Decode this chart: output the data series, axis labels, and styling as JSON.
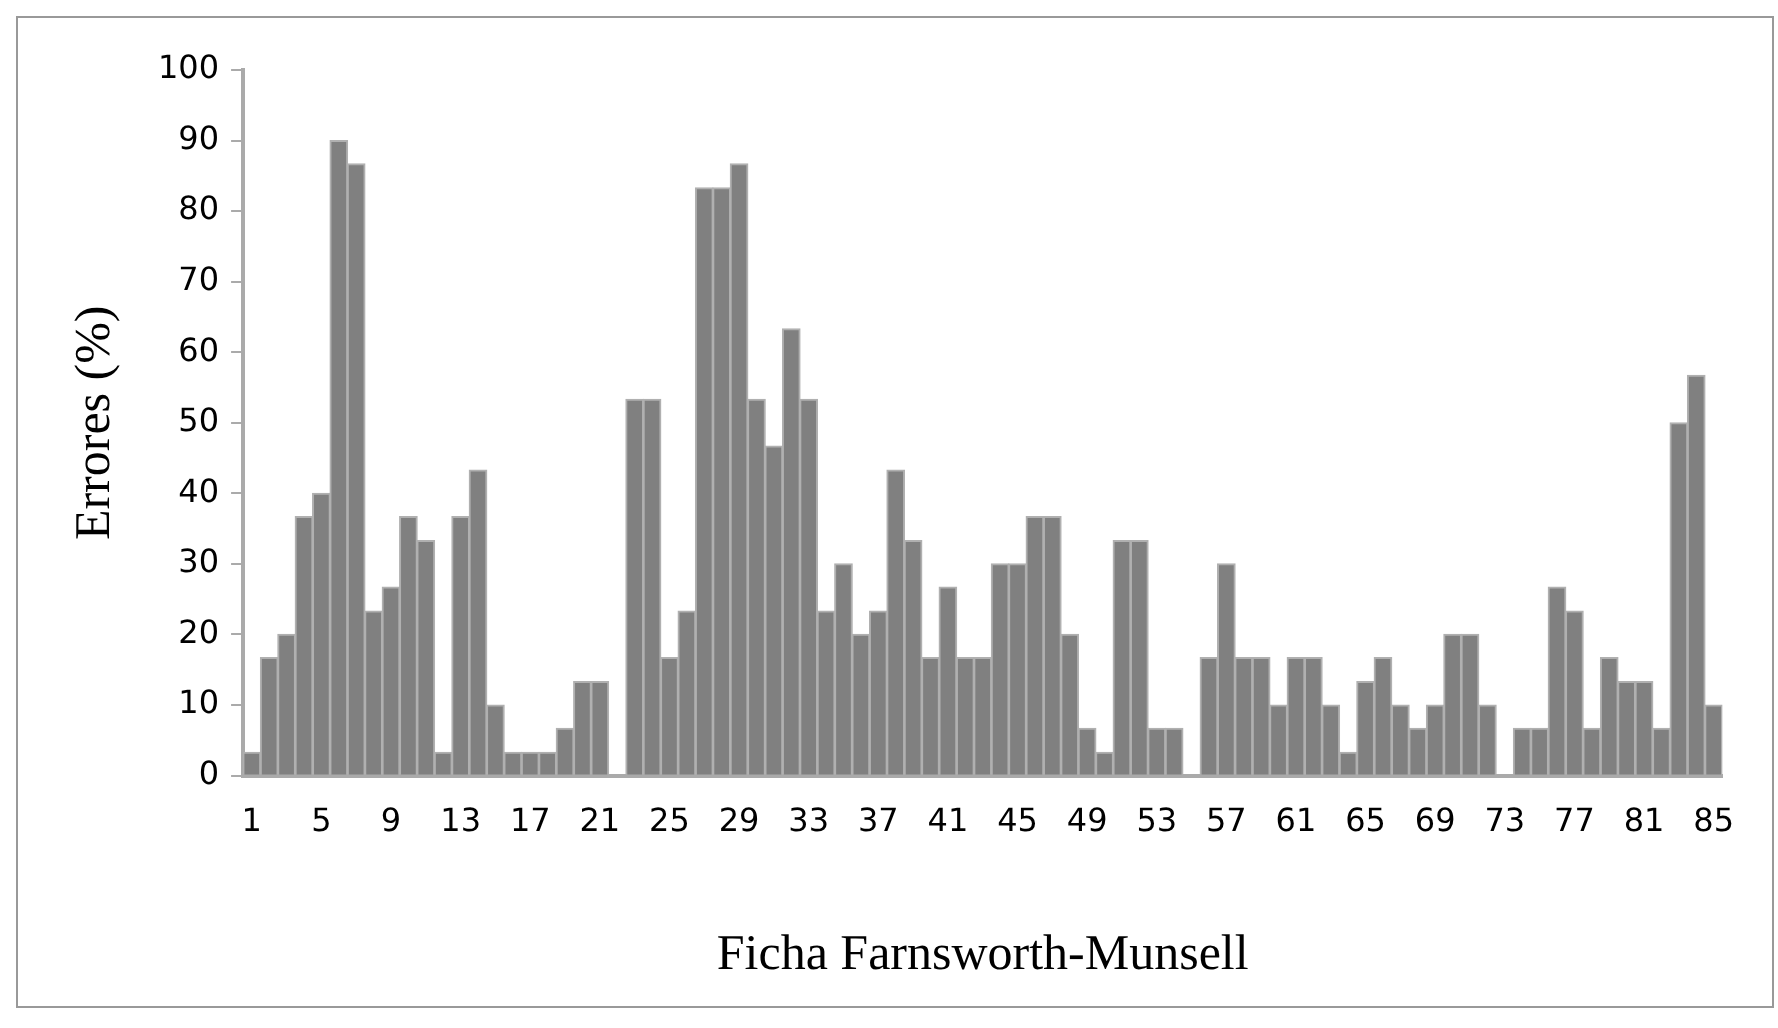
{
  "chart_data": {
    "type": "bar",
    "xlabel": "Ficha Farnsworth-Munsell",
    "ylabel": "Errores (%)",
    "categories": [
      "1",
      null,
      null,
      null,
      "5",
      null,
      null,
      null,
      "9",
      null,
      null,
      null,
      "13",
      null,
      null,
      null,
      "17",
      null,
      null,
      null,
      "21",
      null,
      null,
      null,
      "25",
      null,
      null,
      null,
      "29",
      null,
      null,
      null,
      "33",
      null,
      null,
      null,
      "37",
      null,
      null,
      null,
      "41",
      null,
      null,
      null,
      "45",
      null,
      null,
      null,
      "49",
      null,
      null,
      null,
      "53",
      null,
      null,
      null,
      "57",
      null,
      null,
      null,
      "61",
      null,
      null,
      null,
      "65",
      null,
      null,
      null,
      "69",
      null,
      null,
      null,
      "73",
      null,
      null,
      null,
      "77",
      null,
      null,
      null,
      "81",
      null,
      null,
      null,
      "85"
    ],
    "values": [
      3.3,
      16.7,
      20,
      36.7,
      40,
      90,
      86.7,
      23.3,
      26.7,
      36.7,
      33.3,
      3.3,
      36.7,
      43.3,
      10,
      3.3,
      3.3,
      3.3,
      6.7,
      13.3,
      13.3,
      0,
      53.3,
      53.3,
      16.7,
      23.3,
      83.3,
      83.3,
      86.7,
      53.3,
      46.7,
      63.3,
      53.3,
      23.3,
      30,
      20,
      23.3,
      43.3,
      33.3,
      16.7,
      26.7,
      16.7,
      16.7,
      30,
      30,
      36.7,
      36.7,
      20,
      6.7,
      3.3,
      33.3,
      33.3,
      6.7,
      6.7,
      0,
      16.7,
      30,
      16.7,
      16.7,
      10,
      16.7,
      16.7,
      10,
      3.3,
      13.3,
      16.7,
      10,
      6.7,
      10,
      20,
      20,
      10,
      0,
      6.7,
      6.7,
      26.7,
      23.3,
      6.7,
      16.7,
      13.3,
      13.3,
      6.7,
      50,
      56.7,
      10
    ],
    "color": "#808080",
    "ylim": [
      0,
      100
    ],
    "yticks": [
      0,
      10,
      20,
      30,
      40,
      50,
      60,
      70,
      80,
      90,
      100
    ],
    "grid": false,
    "legend": false
  }
}
